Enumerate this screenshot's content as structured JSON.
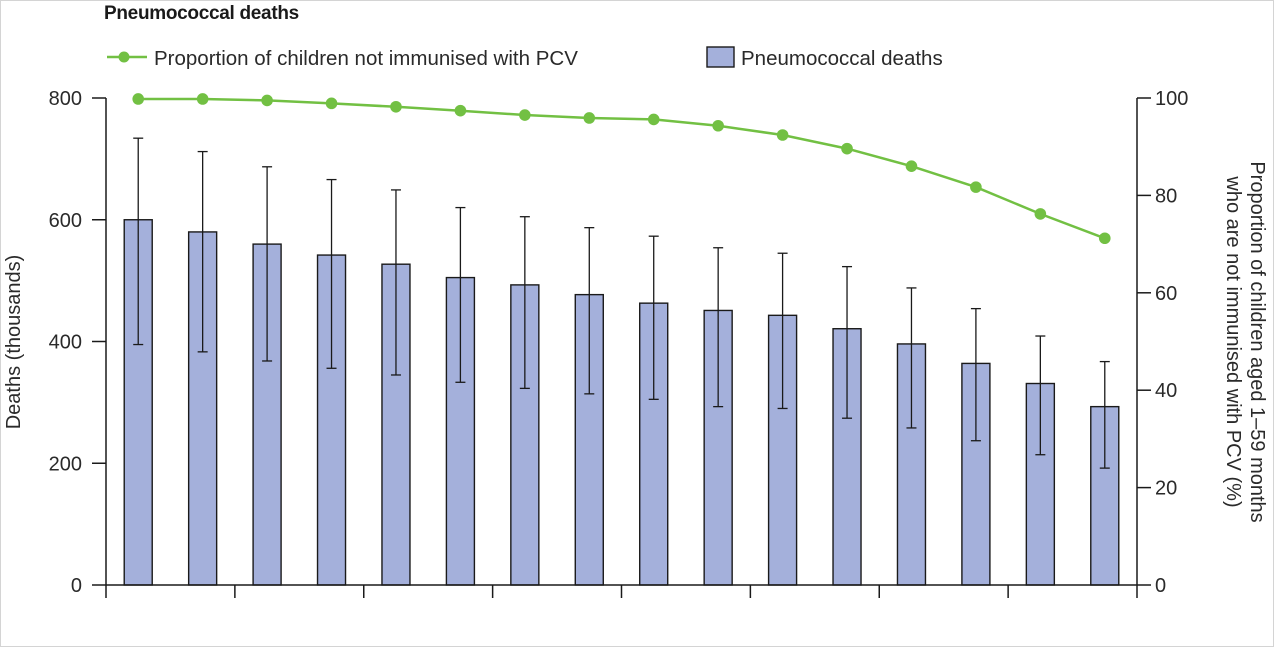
{
  "chart_data": {
    "type": "bar",
    "title": "Pneumococcal deaths",
    "ylabel": "Deaths (thousands)",
    "y2label_line1": "Proportion of children aged 1–59 months",
    "y2label_line2": "who are not immunised with PCV (%)",
    "ylim": [
      0,
      800
    ],
    "y2lim": [
      0,
      100
    ],
    "yticks": [
      0,
      200,
      400,
      600,
      800
    ],
    "y2ticks": [
      0,
      20,
      40,
      60,
      80,
      100
    ],
    "legend_placement": "top-left",
    "colors": {
      "bar": "#a4b0db",
      "bar_edge": "#1a1a1a",
      "line": "#72c043",
      "axis": "#1a1a1a"
    },
    "series": [
      {
        "name": "Pneumococcal deaths",
        "kind": "bar",
        "values": [
          600,
          580,
          560,
          542,
          527,
          505,
          493,
          477,
          463,
          451,
          443,
          421,
          396,
          364,
          331,
          293
        ],
        "error_low": [
          395,
          383,
          368,
          356,
          345,
          333,
          323,
          314,
          305,
          293,
          290,
          274,
          258,
          237,
          214,
          192
        ],
        "error_high": [
          734,
          712,
          687,
          666,
          649,
          620,
          605,
          587,
          573,
          554,
          545,
          523,
          488,
          454,
          409,
          367
        ]
      },
      {
        "name": "Proportion of children not immunised with PCV",
        "kind": "line",
        "axis": "right",
        "values": [
          99.8,
          99.8,
          99.5,
          98.9,
          98.2,
          97.4,
          96.5,
          95.9,
          95.6,
          94.3,
          92.4,
          89.6,
          86.0,
          81.7,
          76.2,
          71.2
        ]
      }
    ]
  }
}
